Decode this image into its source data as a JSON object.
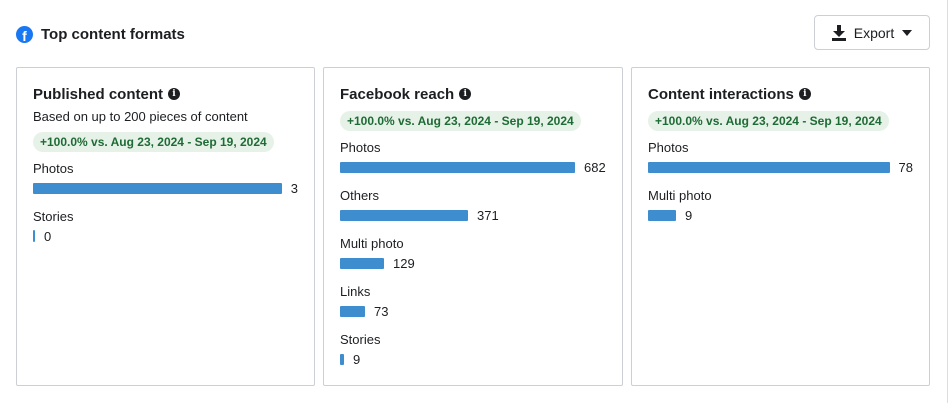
{
  "header": {
    "title": "Top content formats",
    "export_label": "Export"
  },
  "cards": [
    {
      "title": "Published content",
      "subtitle": "Based on up to 200 pieces of content",
      "badge": "+100.0% vs. Aug 23, 2024 - Sep 19, 2024",
      "max": 3,
      "rows": [
        {
          "label": "Photos",
          "value": 3
        },
        {
          "label": "Stories",
          "value": 0
        }
      ]
    },
    {
      "title": "Facebook reach",
      "badge": "+100.0% vs. Aug 23, 2024 - Sep 19, 2024",
      "max": 682,
      "rows": [
        {
          "label": "Photos",
          "value": 682
        },
        {
          "label": "Others",
          "value": 371
        },
        {
          "label": "Multi photo",
          "value": 129
        },
        {
          "label": "Links",
          "value": 73
        },
        {
          "label": "Stories",
          "value": 9
        }
      ]
    },
    {
      "title": "Content interactions",
      "badge": "+100.0% vs. Aug 23, 2024 - Sep 19, 2024",
      "max": 78,
      "rows": [
        {
          "label": "Photos",
          "value": 78
        },
        {
          "label": "Multi photo",
          "value": 9
        }
      ]
    }
  ]
}
